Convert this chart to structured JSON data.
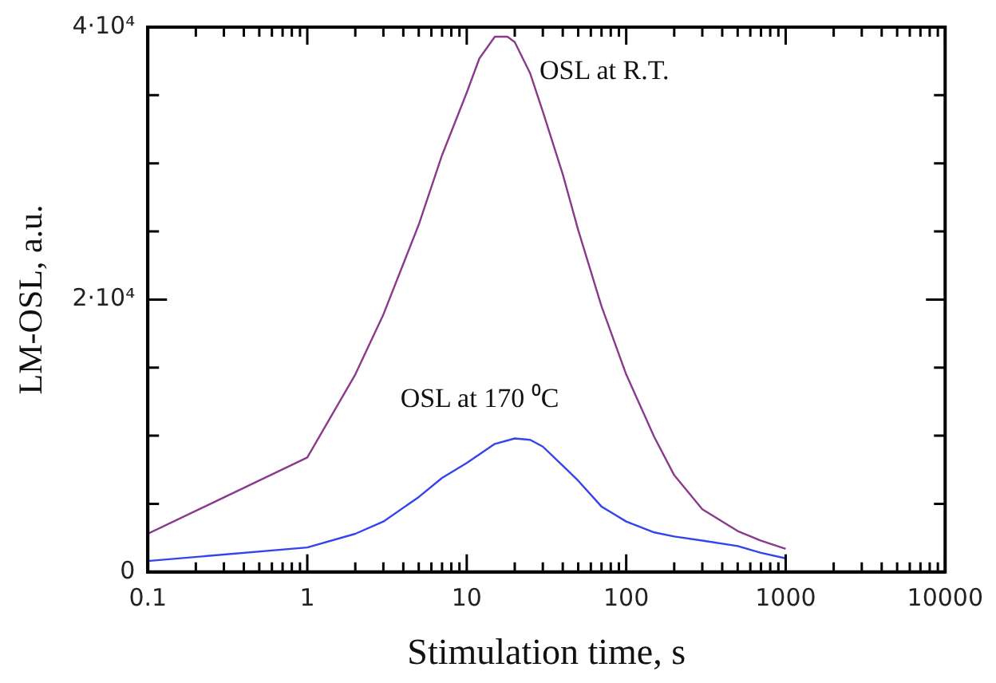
{
  "chart_data": {
    "type": "line",
    "xlabel": "Stimulation time, s",
    "ylabel": "LM-OSL, a.u.",
    "log": "x",
    "grid": false,
    "legend": false,
    "marker": "none",
    "line_style": "solid",
    "xlim": [
      0.1,
      10000
    ],
    "xticks": [
      0.1,
      {
        "value": 0.2,
        "label": null
      },
      {
        "value": 0.3,
        "label": null
      },
      {
        "value": 0.4,
        "label": null
      },
      {
        "value": 0.5,
        "label": null
      },
      {
        "value": 0.6,
        "label": null
      },
      {
        "value": 0.7,
        "label": null
      },
      {
        "value": 0.8,
        "label": null
      },
      {
        "value": 0.9,
        "label": null
      },
      1,
      {
        "value": 2,
        "label": null
      },
      {
        "value": 3,
        "label": null
      },
      {
        "value": 4,
        "label": null
      },
      {
        "value": 5,
        "label": null
      },
      {
        "value": 6,
        "label": null
      },
      {
        "value": 7,
        "label": null
      },
      {
        "value": 8,
        "label": null
      },
      {
        "value": 9,
        "label": null
      },
      10,
      {
        "value": 20,
        "label": null
      },
      {
        "value": 30,
        "label": null
      },
      {
        "value": 40,
        "label": null
      },
      {
        "value": 50,
        "label": null
      },
      {
        "value": 60,
        "label": null
      },
      {
        "value": 70,
        "label": null
      },
      {
        "value": 80,
        "label": null
      },
      {
        "value": 90,
        "label": null
      },
      100,
      {
        "value": 200,
        "label": null
      },
      {
        "value": 300,
        "label": null
      },
      {
        "value": 400,
        "label": null
      },
      {
        "value": 500,
        "label": null
      },
      {
        "value": 600,
        "label": null
      },
      {
        "value": 700,
        "label": null
      },
      {
        "value": 800,
        "label": null
      },
      {
        "value": 900,
        "label": null
      },
      1000,
      {
        "value": 2000,
        "label": null
      },
      {
        "value": 3000,
        "label": null
      },
      {
        "value": 4000,
        "label": null
      },
      {
        "value": 5000,
        "label": null
      },
      {
        "value": 6000,
        "label": null
      },
      {
        "value": 7000,
        "label": null
      },
      {
        "value": 8000,
        "label": null
      },
      {
        "value": 9000,
        "label": null
      },
      10000
    ],
    "ylim": [
      0,
      40000
    ],
    "yticks": [
      0,
      {
        "value": 5000,
        "label": null
      },
      {
        "value": 10000,
        "label": null
      },
      {
        "value": 15000,
        "label": null
      },
      {
        "value": 20000,
        "label": "2·10⁴"
      },
      {
        "value": 25000,
        "label": null
      },
      {
        "value": 30000,
        "label": null
      },
      {
        "value": 35000,
        "label": null
      },
      {
        "value": 40000,
        "label": "4·10⁴"
      }
    ],
    "series": [
      {
        "name": "OSL at R.T.",
        "color": "#8b3a8b",
        "x": [
          0.1,
          1,
          2,
          3,
          5,
          7,
          10,
          12,
          15,
          18,
          20,
          25,
          30,
          40,
          50,
          70,
          100,
          150,
          200,
          300,
          500,
          700,
          1000
        ],
        "values": [
          2800,
          8400,
          14500,
          18900,
          25500,
          30600,
          35200,
          37700,
          39300,
          39300,
          38900,
          36600,
          33800,
          29200,
          25100,
          19500,
          14500,
          9900,
          7100,
          4600,
          3000,
          2300,
          1700
        ]
      },
      {
        "name": "OSL at 170 ⁰C",
        "color": "#3344ee",
        "x": [
          0.1,
          1,
          2,
          3,
          5,
          7,
          10,
          15,
          20,
          25,
          30,
          40,
          50,
          70,
          100,
          150,
          200,
          300,
          500,
          700,
          1000
        ],
        "values": [
          800,
          1800,
          2800,
          3700,
          5500,
          6900,
          8000,
          9400,
          9800,
          9700,
          9200,
          7800,
          6700,
          4800,
          3700,
          2900,
          2600,
          2300,
          1900,
          1400,
          1000
        ]
      }
    ]
  }
}
